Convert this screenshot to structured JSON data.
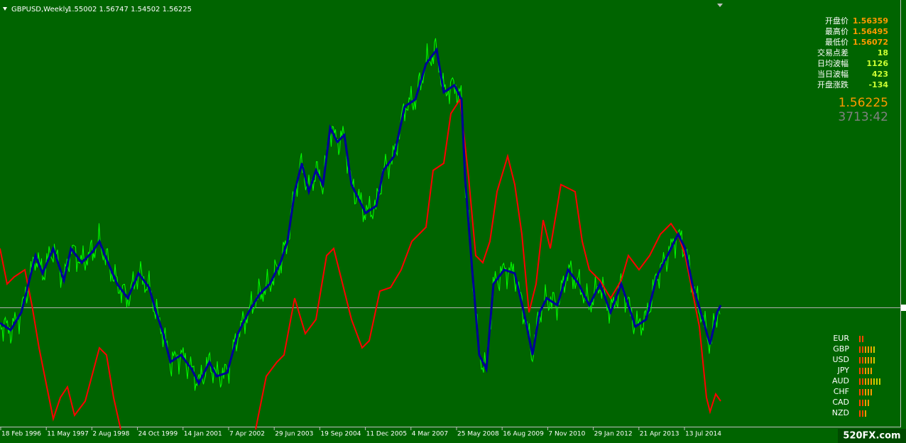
{
  "header": {
    "symbol": "GBPUSD,Weekly",
    "quote": "1.55002 1.56747 1.54502 1.56225"
  },
  "info_panel": {
    "rows": [
      {
        "label": "开盘价",
        "value": "1.56359"
      },
      {
        "label": "最高价",
        "value": "1.56495"
      },
      {
        "label": "最低价",
        "value": "1.56072"
      },
      {
        "label": "交易点差",
        "value": "18"
      },
      {
        "label": "日均波幅",
        "value": "1126"
      },
      {
        "label": "当日波幅",
        "value": "423"
      },
      {
        "label": "开盘涨跌",
        "value": "-134"
      }
    ],
    "price": "1.56225",
    "timer": "3713:42"
  },
  "currency_strength": {
    "currencies": [
      "EUR",
      "GBP",
      "USD",
      "JPY",
      "AUD",
      "CHF",
      "CAD",
      "NZD"
    ],
    "values": [
      2,
      6,
      6,
      5,
      8,
      5,
      4,
      3
    ]
  },
  "time_axis": [
    "18 Feb 1996",
    "11 May 1997",
    "2 Aug 1998",
    "24 Oct 1999",
    "14 Jan 2001",
    "7 Apr 2002",
    "29 Jun 2003",
    "19 Sep 2004",
    "11 Dec 2005",
    "4 Mar 2007",
    "25 May 2008",
    "16 Aug 2009",
    "7 Nov 2010",
    "29 Jan 2012",
    "21 Apr 2013",
    "13 Jul 2014"
  ],
  "watermark": "520FX.com"
}
